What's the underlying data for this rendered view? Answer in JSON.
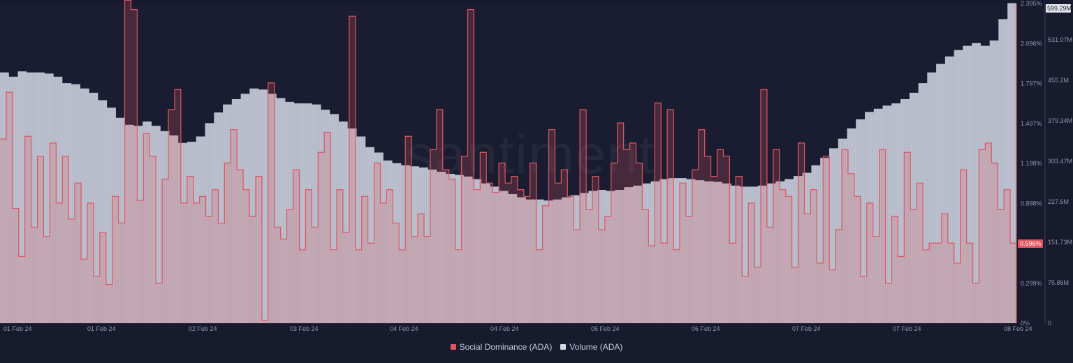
{
  "chart_data": {
    "type": "line",
    "title": "",
    "watermark": "santiment",
    "x_tick_labels": [
      "01 Feb 24",
      "01 Feb 24",
      "02 Feb 24",
      "03 Feb 24",
      "04 Feb 24",
      "04 Feb 24",
      "05 Feb 24",
      "06 Feb 24",
      "07 Feb 24",
      "07 Feb 24",
      "08 Feb 24"
    ],
    "y_right_inner": {
      "label": "Social Dominance (ADA)",
      "unit": "%",
      "ylim": [
        0,
        2.395
      ],
      "tick_labels": [
        "0%",
        "0.299%",
        "0.598%",
        "0.898%",
        "1.198%",
        "1.497%",
        "1.797%",
        "2.096%",
        "2.395%"
      ],
      "current_value_label": "0.596%",
      "current_value": 0.596
    },
    "y_right_outer": {
      "label": "Volume (ADA)",
      "ylim": [
        0,
        599.29
      ],
      "tick_labels": [
        "0",
        "75.86M",
        "151.73M",
        "227.6M",
        "303.47M",
        "379.34M",
        "455.2M",
        "531.07M",
        "599.29M"
      ],
      "current_value_label": "599.29M",
      "current_value": 599.29
    },
    "series": [
      {
        "name": "Social Dominance (ADA)",
        "axis": "y_right_inner",
        "color": "#e2555f",
        "values": [
          1.38,
          1.73,
          0.86,
          0.5,
          1.4,
          0.72,
          1.25,
          0.65,
          1.35,
          0.9,
          1.25,
          0.78,
          1.05,
          0.48,
          0.9,
          0.35,
          0.68,
          0.29,
          0.95,
          0.75,
          2.42,
          2.35,
          0.92,
          1.42,
          1.25,
          0.3,
          1.08,
          1.6,
          1.75,
          0.9,
          1.1,
          0.9,
          0.95,
          0.8,
          1.0,
          0.75,
          1.2,
          1.45,
          1.15,
          1.0,
          0.8,
          1.1,
          0.02,
          1.8,
          0.72,
          0.63,
          0.85,
          1.15,
          0.55,
          1.0,
          0.72,
          1.28,
          1.43,
          0.55,
          1.0,
          0.68,
          2.3,
          0.55,
          0.95,
          0.6,
          1.2,
          0.9,
          1.0,
          0.75,
          0.55,
          1.4,
          0.65,
          0.82,
          0.65,
          1.3,
          1.6,
          1.15,
          1.08,
          0.55,
          1.25,
          2.35,
          1.0,
          1.28,
          1.05,
          0.98,
          1.2,
          1.05,
          1.1,
          1.0,
          0.95,
          1.2,
          0.55,
          0.88,
          1.45,
          1.05,
          1.15,
          0.95,
          0.7,
          1.6,
          0.85,
          1.1,
          0.7,
          0.8,
          1.2,
          1.5,
          1.3,
          1.35,
          1.2,
          0.85,
          0.58,
          1.65,
          0.6,
          1.6,
          0.55,
          1.05,
          0.8,
          1.15,
          1.45,
          1.25,
          1.1,
          1.3,
          1.25,
          0.6,
          1.1,
          0.35,
          0.9,
          0.42,
          1.75,
          0.72,
          1.3,
          1.0,
          0.95,
          0.42,
          1.35,
          0.82,
          1.0,
          0.45,
          1.25,
          0.4,
          0.7,
          1.3,
          1.12,
          0.95,
          0.35,
          0.9,
          0.65,
          1.3,
          0.3,
          0.8,
          0.5,
          1.28,
          0.85,
          1.05,
          0.55,
          0.6,
          0.6,
          0.82,
          0.6,
          0.45,
          1.15,
          0.6,
          0.3,
          1.3,
          1.35,
          1.2,
          0.85,
          1.0,
          0.6
        ]
      },
      {
        "name": "Volume (ADA)",
        "axis": "y_right_outer",
        "color": "#d4d7e3",
        "values": [
          470,
          462,
          472,
          470,
          470,
          468,
          462,
          450,
          448,
          440,
          432,
          418,
          404,
          385,
          372,
          370,
          378,
          370,
          360,
          352,
          338,
          340,
          350,
          375,
          395,
          410,
          420,
          430,
          440,
          438,
          430,
          422,
          415,
          412,
          412,
          410,
          400,
          392,
          378,
          365,
          350,
          330,
          320,
          305,
          300,
          296,
          294,
          292,
          288,
          284,
          280,
          278,
          275,
          270,
          262,
          256,
          248,
          242,
          236,
          232,
          232,
          230,
          232,
          236,
          240,
          244,
          248,
          250,
          248,
          250,
          255,
          258,
          262,
          266,
          270,
          272,
          272,
          270,
          268,
          266,
          265,
          262,
          258,
          256,
          256,
          258,
          262,
          266,
          270,
          276,
          282,
          296,
          310,
          328,
          346,
          365,
          382,
          396,
          402,
          408,
          412,
          420,
          432,
          450,
          470,
          486,
          500,
          512,
          520,
          525,
          520,
          530,
          570,
          600
        ]
      }
    ],
    "legend": [
      "Social Dominance (ADA)",
      "Volume (ADA)"
    ],
    "legend_position": "bottom-center",
    "grid": false
  }
}
